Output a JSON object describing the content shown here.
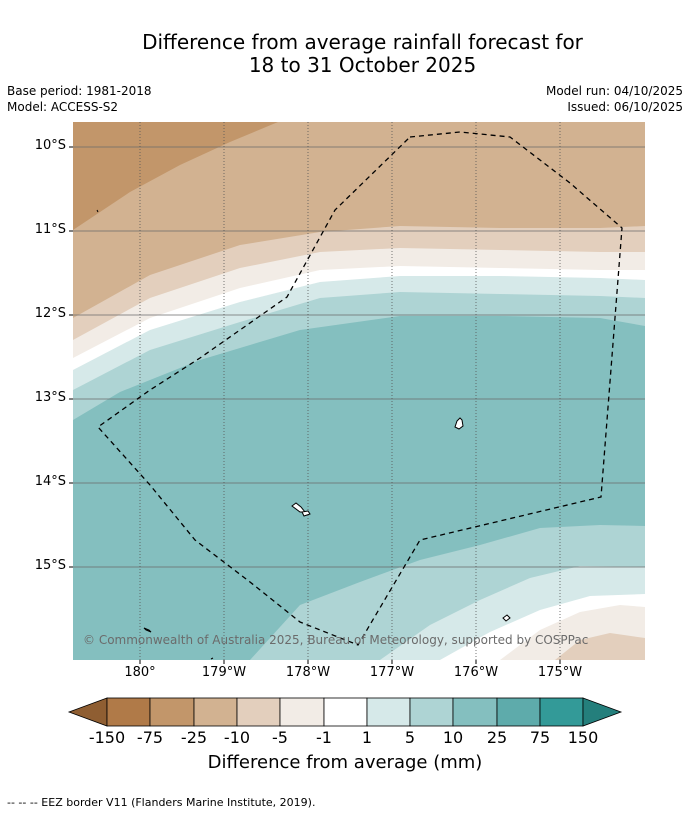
{
  "header": {
    "title_line1": "Difference from average rainfall forecast for",
    "title_line2": "18 to 31 October 2025",
    "base_period": "Base period: 1981-2018",
    "model": "Model: ACCESS-S2",
    "model_run": "Model run: 04/10/2025",
    "issued": "Issued: 06/10/2025"
  },
  "map": {
    "lat_labels": [
      "10°S",
      "11°S",
      "12°S",
      "13°S",
      "14°S",
      "15°S"
    ],
    "lon_labels": [
      "180°",
      "179°W",
      "178°W",
      "177°W",
      "176°W",
      "175°W"
    ],
    "credit": "© Commonwealth of Australia 2025, Bureau of Meteorology, supported by COSPPac"
  },
  "legend": {
    "title": "Difference from average (mm)",
    "labels": [
      "-150",
      "-75",
      "-25",
      "-10",
      "-5",
      "-1",
      "1",
      "5",
      "10",
      "25",
      "75",
      "150"
    ],
    "colors": {
      "below_150": "#8f5e32",
      "m150_m75": "#b07a48",
      "m75_m25": "#c2966a",
      "m25_m10": "#d2b291",
      "m10_m5": "#e3cfbd",
      "m5_m1": "#f2ece6",
      "m1_1": "#ffffff",
      "p1_p5": "#d6e9e9",
      "p5_p10": "#aed4d4",
      "p10_p25": "#84bfbf",
      "p25_p75": "#5eabab",
      "p75_p150": "#339a98",
      "above_150": "#247f7c"
    }
  },
  "footer": {
    "eez_note": "--  --  -- EEZ border V11 (Flanders Marine Institute, 2019)."
  }
}
